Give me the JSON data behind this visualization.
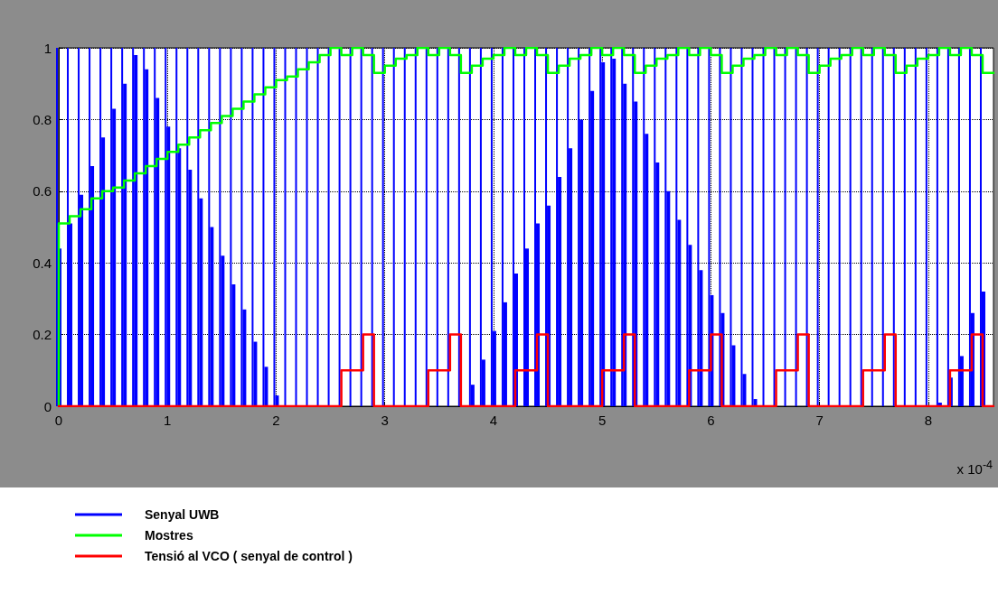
{
  "chart_data": {
    "type": "step",
    "x": [
      0,
      0.1,
      0.2,
      0.3,
      0.4,
      0.5,
      0.6,
      0.7,
      0.8,
      0.9,
      1,
      1.1,
      1.2,
      1.3,
      1.4,
      1.5,
      1.6,
      1.7,
      1.8,
      1.9,
      2,
      2.1,
      2.2,
      2.3,
      2.4,
      2.5,
      2.6,
      2.7,
      2.8,
      2.9,
      3,
      3.1,
      3.2,
      3.3,
      3.4,
      3.5,
      3.6,
      3.7,
      3.8,
      3.9,
      4,
      4.1,
      4.2,
      4.3,
      4.4,
      4.5,
      4.6,
      4.7,
      4.8,
      4.9,
      5,
      5.1,
      5.2,
      5.3,
      5.4,
      5.5,
      5.6,
      5.7,
      5.8,
      5.9,
      6,
      6.1,
      6.2,
      6.3,
      6.4,
      6.5,
      6.6,
      6.7,
      6.8,
      6.9,
      7,
      7.1,
      7.2,
      7.3,
      7.4,
      7.5,
      7.6,
      7.7,
      7.8,
      7.9,
      8,
      8.1,
      8.2,
      8.3,
      8.4,
      8.5
    ],
    "series": [
      {
        "type": "bar",
        "color": "#0000ff",
        "values": [
          1,
          1,
          1,
          1,
          1,
          1,
          1,
          1,
          1,
          1,
          1,
          1,
          1,
          1,
          1,
          1,
          1,
          1,
          1,
          1,
          1,
          1,
          1,
          1,
          1,
          1,
          1,
          1,
          1,
          1,
          1,
          1,
          1,
          1,
          1,
          1,
          1,
          1,
          1,
          1,
          1,
          1,
          1,
          1,
          1,
          1,
          1,
          1,
          1,
          1,
          1,
          1,
          1,
          1,
          1,
          1,
          1,
          1,
          1,
          1,
          1,
          1,
          1,
          1,
          1,
          1,
          1,
          1,
          1,
          1,
          1,
          1,
          1,
          1,
          1,
          1,
          1,
          1,
          1,
          1,
          1,
          1,
          1,
          1,
          1,
          1
        ]
      },
      {
        "type": "bar",
        "name": "Senyal UWB",
        "color": "#0000ff",
        "values": [
          0.44,
          0.51,
          0.59,
          0.67,
          0.75,
          0.83,
          0.9,
          0.98,
          0.94,
          0.86,
          0.78,
          0.72,
          0.66,
          0.58,
          0.5,
          0.42,
          0.34,
          0.27,
          0.18,
          0.11,
          0.03,
          null,
          null,
          null,
          null,
          null,
          null,
          null,
          null,
          null,
          null,
          null,
          null,
          null,
          null,
          null,
          null,
          null,
          0.06,
          0.13,
          0.21,
          0.29,
          0.37,
          0.44,
          0.51,
          0.56,
          0.64,
          0.72,
          0.8,
          0.88,
          0.96,
          0.97,
          0.9,
          0.85,
          0.76,
          0.68,
          0.6,
          0.52,
          0.45,
          0.38,
          0.31,
          0.26,
          0.17,
          0.09,
          0.02,
          null,
          null,
          null,
          null,
          null,
          null,
          null,
          null,
          null,
          null,
          null,
          null,
          null,
          null,
          null,
          null,
          0.01,
          0.08,
          0.14,
          0.26,
          0.32
        ]
      },
      {
        "name": "Mostres",
        "color": "#00ff00",
        "x": [
          0,
          0,
          0.1,
          0.2,
          0.3,
          0.4,
          0.5,
          0.6,
          0.7,
          0.8,
          0.9,
          1,
          1.1,
          1.2,
          1.3,
          1.4,
          1.5,
          1.6,
          1.7,
          1.8,
          1.9,
          2,
          2.1,
          2.2,
          2.3,
          2.4,
          2.5,
          2.6,
          2.7,
          2.8,
          2.9,
          3,
          3.1,
          3.2,
          3.3,
          3.4,
          3.5,
          3.6,
          3.7,
          3.8,
          3.9,
          4,
          4.1,
          4.2,
          4.3,
          4.4,
          4.5,
          4.6,
          4.7,
          4.8,
          4.9,
          5,
          5.1,
          5.2,
          5.3,
          5.4,
          5.5,
          5.6,
          5.7,
          5.8,
          5.9,
          6,
          6.1,
          6.2,
          6.3,
          6.4,
          6.5,
          6.6,
          6.7,
          6.8,
          6.9,
          7,
          7.1,
          7.2,
          7.3,
          7.4,
          7.5,
          7.6,
          7.7,
          7.8,
          7.9,
          8,
          8.1,
          8.2,
          8.3,
          8.4,
          8.5,
          8.6
        ],
        "values": [
          0,
          0.51,
          0.53,
          0.55,
          0.58,
          0.6,
          0.61,
          0.63,
          0.65,
          0.67,
          0.69,
          0.71,
          0.73,
          0.75,
          0.77,
          0.79,
          0.81,
          0.83,
          0.85,
          0.87,
          0.89,
          0.91,
          0.92,
          0.94,
          0.96,
          0.98,
          1,
          0.98,
          1,
          0.98,
          0.93,
          0.95,
          0.97,
          0.98,
          1,
          0.98,
          1,
          0.98,
          0.93,
          0.95,
          0.97,
          0.98,
          1,
          0.98,
          1,
          0.98,
          0.93,
          0.95,
          0.97,
          0.98,
          1,
          0.98,
          1,
          0.98,
          0.93,
          0.95,
          0.97,
          0.98,
          1,
          0.98,
          1,
          0.98,
          0.93,
          0.95,
          0.97,
          0.98,
          1,
          0.98,
          1,
          0.98,
          0.93,
          0.95,
          0.97,
          0.98,
          1,
          0.98,
          1,
          0.98,
          0.93,
          0.95,
          0.97,
          0.98,
          1,
          0.98,
          1,
          0.98,
          0.93,
          0.93
        ]
      },
      {
        "name": "Tensió al VCO ( senyal de control )",
        "color": "#ff0000",
        "x": [
          0,
          2.6,
          2.8,
          2.9,
          3.4,
          3.6,
          3.7,
          4.2,
          4.4,
          4.5,
          5,
          5.2,
          5.3,
          5.8,
          6,
          6.1,
          6.6,
          6.8,
          6.9,
          7.4,
          7.6,
          7.7,
          8.2,
          8.4,
          8.5,
          8.6
        ],
        "values": [
          0,
          0.1,
          0.2,
          0,
          0.1,
          0.2,
          0,
          0.1,
          0.2,
          0,
          0.1,
          0.2,
          0,
          0.1,
          0.2,
          0,
          0.1,
          0.2,
          0,
          0.1,
          0.2,
          0,
          0.1,
          0.2,
          0,
          0
        ]
      }
    ],
    "xlim": [
      0,
      8.6
    ],
    "xticks": [
      0,
      1,
      2,
      3,
      4,
      5,
      6,
      7,
      8
    ],
    "ylim": [
      0,
      1
    ],
    "yticks": [
      0,
      0.2,
      0.4,
      0.6,
      0.8,
      1
    ],
    "grid": true,
    "legend": "bottom left",
    "marker": "none",
    "line_style": "solid",
    "annotations": [
      "x 10$^{-4}$"
    ]
  }
}
